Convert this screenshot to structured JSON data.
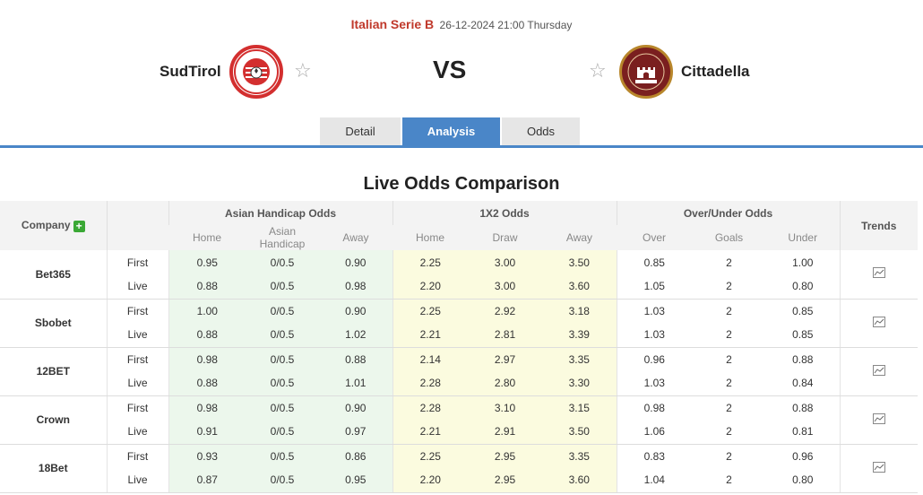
{
  "match": {
    "league": "Italian Serie B",
    "datetime": "26-12-2024 21:00 Thursday",
    "home_team": "SudTirol",
    "away_team": "Cittadella",
    "vs": "VS",
    "home_logo_text": "FC SÜDTIROL",
    "away_logo_text": "AS CITTADELLA 1973"
  },
  "tabs": [
    {
      "label": "Detail",
      "active": false
    },
    {
      "label": "Analysis",
      "active": true
    },
    {
      "label": "Odds",
      "active": false
    }
  ],
  "section_title": "Live Odds Comparison",
  "table": {
    "company_header": "Company",
    "add_icon": "plus-icon",
    "trends_header": "Trends",
    "groups": {
      "asian": "Asian Handicap Odds",
      "x12": "1X2 Odds",
      "ou": "Over/Under Odds"
    },
    "subheaders": {
      "asian": [
        "Home",
        "Asian Handicap",
        "Away"
      ],
      "x12": [
        "Home",
        "Draw",
        "Away"
      ],
      "ou": [
        "Over",
        "Goals",
        "Under"
      ]
    },
    "rows": [
      {
        "company": "Bet365",
        "first": {
          "type": "First",
          "ah": [
            "0.95",
            "0/0.5",
            "0.90"
          ],
          "x12": [
            "2.25",
            "3.00",
            "3.50"
          ],
          "ou": [
            "0.85",
            "2",
            "1.00"
          ]
        },
        "live": {
          "type": "Live",
          "ah": [
            "0.88",
            "0/0.5",
            "0.98"
          ],
          "x12": [
            "2.20",
            "3.00",
            "3.60"
          ],
          "ou": [
            "1.05",
            "2",
            "0.80"
          ]
        }
      },
      {
        "company": "Sbobet",
        "first": {
          "type": "First",
          "ah": [
            "1.00",
            "0/0.5",
            "0.90"
          ],
          "x12": [
            "2.25",
            "2.92",
            "3.18"
          ],
          "ou": [
            "1.03",
            "2",
            "0.85"
          ]
        },
        "live": {
          "type": "Live",
          "ah": [
            "0.88",
            "0/0.5",
            "1.02"
          ],
          "x12": [
            "2.21",
            "2.81",
            "3.39"
          ],
          "ou": [
            "1.03",
            "2",
            "0.85"
          ]
        }
      },
      {
        "company": "12BET",
        "first": {
          "type": "First",
          "ah": [
            "0.98",
            "0/0.5",
            "0.88"
          ],
          "x12": [
            "2.14",
            "2.97",
            "3.35"
          ],
          "ou": [
            "0.96",
            "2",
            "0.88"
          ]
        },
        "live": {
          "type": "Live",
          "ah": [
            "0.88",
            "0/0.5",
            "1.01"
          ],
          "x12": [
            "2.28",
            "2.80",
            "3.30"
          ],
          "ou": [
            "1.03",
            "2",
            "0.84"
          ]
        }
      },
      {
        "company": "Crown",
        "first": {
          "type": "First",
          "ah": [
            "0.98",
            "0/0.5",
            "0.90"
          ],
          "x12": [
            "2.28",
            "3.10",
            "3.15"
          ],
          "ou": [
            "0.98",
            "2",
            "0.88"
          ]
        },
        "live": {
          "type": "Live",
          "ah": [
            "0.91",
            "0/0.5",
            "0.97"
          ],
          "x12": [
            "2.21",
            "2.91",
            "3.50"
          ],
          "ou": [
            "1.06",
            "2",
            "0.81"
          ]
        }
      },
      {
        "company": "18Bet",
        "first": {
          "type": "First",
          "ah": [
            "0.93",
            "0/0.5",
            "0.86"
          ],
          "x12": [
            "2.25",
            "2.95",
            "3.35"
          ],
          "ou": [
            "0.83",
            "2",
            "0.96"
          ]
        },
        "live": {
          "type": "Live",
          "ah": [
            "0.87",
            "0/0.5",
            "0.95"
          ],
          "x12": [
            "2.20",
            "2.95",
            "3.60"
          ],
          "ou": [
            "1.04",
            "2",
            "0.80"
          ]
        }
      }
    ]
  }
}
